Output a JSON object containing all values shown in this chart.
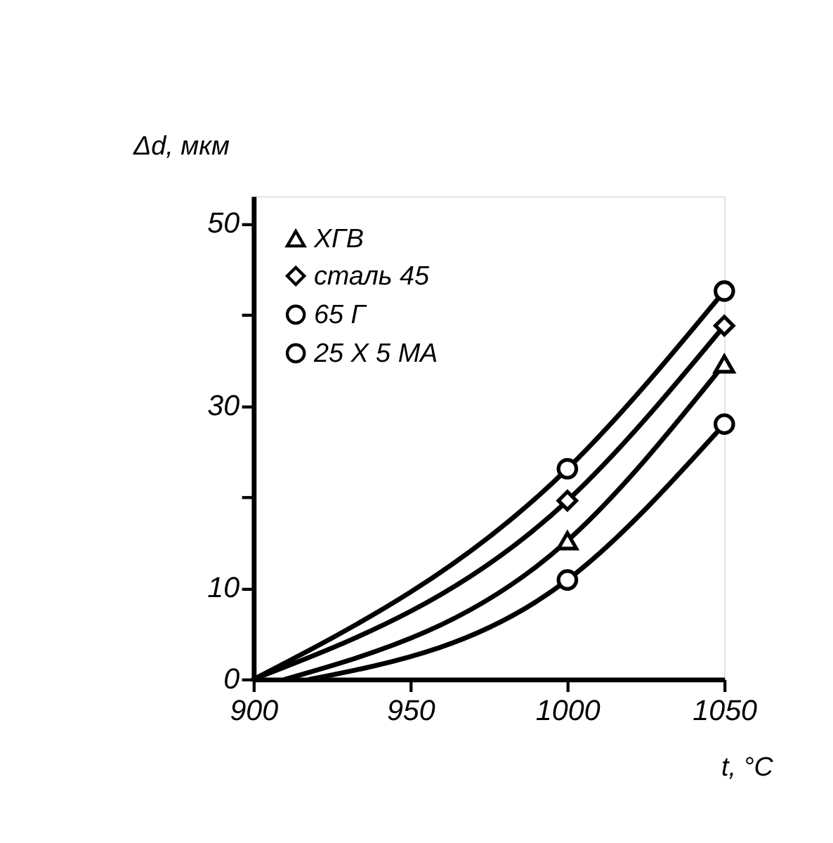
{
  "chart_data": {
    "type": "line",
    "xlabel": "t, °C",
    "ylabel": "Δd, мкм",
    "xlim": [
      900,
      1050
    ],
    "xticks": [
      900,
      950,
      1000,
      1050
    ],
    "ylim": [
      0,
      53
    ],
    "yticks": [
      0,
      10,
      {
        "value": 20,
        "label": null
      },
      30,
      {
        "value": 40,
        "label": null
      },
      50
    ],
    "grid": false,
    "legend": "top left",
    "line_style": "solid",
    "series": [
      {
        "name": "ХГВ",
        "color": "#000000",
        "marker": "triangle",
        "x": [
          910,
          1000,
          1050
        ],
        "values": [
          0,
          15.2,
          34.6
        ]
      },
      {
        "name": "сталь 45",
        "color": "#000000",
        "marker": "diamond",
        "x": [
          900,
          1000,
          1050
        ],
        "values": [
          0,
          19.6,
          38.8
        ]
      },
      {
        "name": "65 Г",
        "color": "#000000",
        "marker": "circle",
        "x": [
          900,
          1000,
          1050
        ],
        "values": [
          0,
          23.1,
          42.6
        ]
      },
      {
        "name": "25 Х 5 МА",
        "color": "#000000",
        "marker": "circle",
        "x": [
          918,
          1000,
          1050
        ],
        "values": [
          0,
          10.9,
          28.0
        ]
      }
    ]
  }
}
